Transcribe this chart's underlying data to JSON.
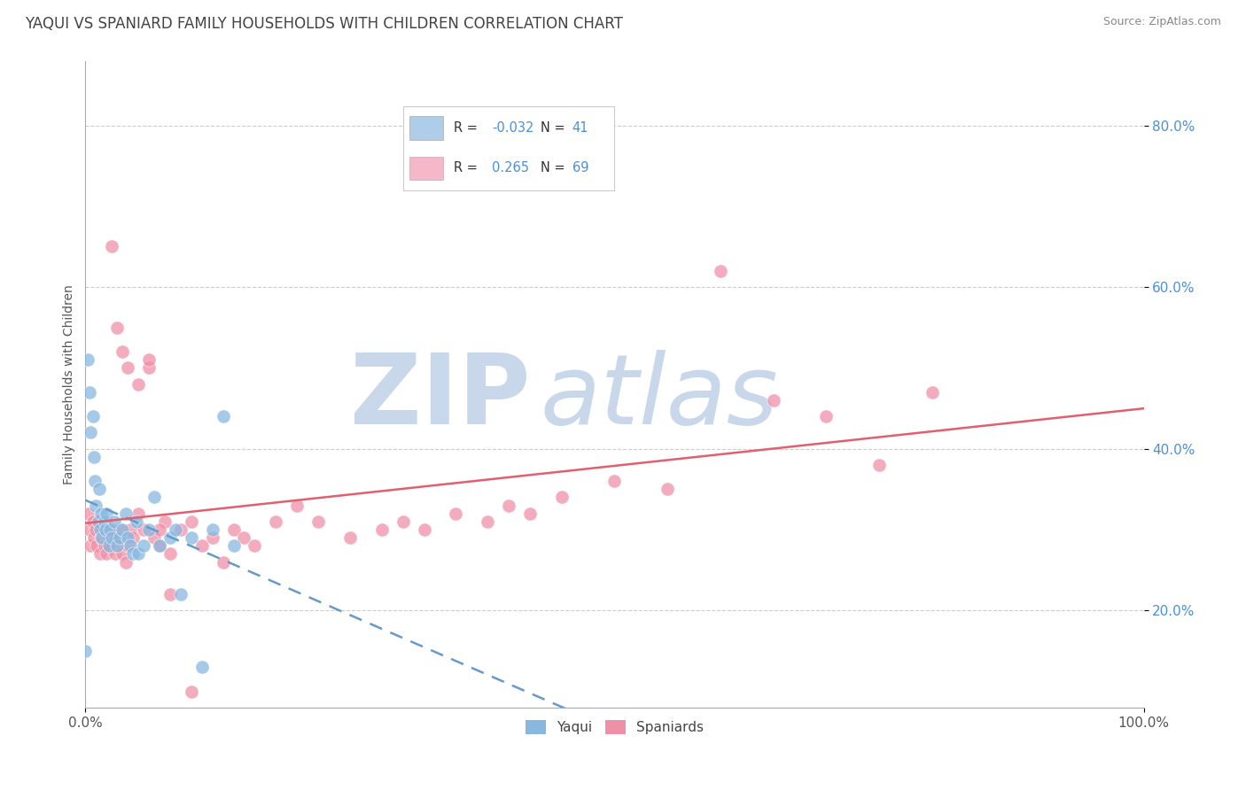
{
  "title": "YAQUI VS SPANIARD FAMILY HOUSEHOLDS WITH CHILDREN CORRELATION CHART",
  "source": "Source: ZipAtlas.com",
  "ylabel": "Family Households with Children",
  "ytick_vals": [
    0.2,
    0.4,
    0.6,
    0.8
  ],
  "ytick_labels": [
    "20.0%",
    "40.0%",
    "60.0%",
    "80.0%"
  ],
  "xmin": 0.0,
  "xmax": 1.0,
  "ymin": 0.08,
  "ymax": 0.88,
  "yaqui_color": "#89b8df",
  "yaqui_trend_color": "#6699cc",
  "spaniard_color": "#f090a8",
  "spaniard_trend_color": "#e06070",
  "legend_yaqui_color": "#aecde8",
  "legend_span_color": "#f4b8c8",
  "background_color": "#ffffff",
  "grid_color": "#cccccc",
  "title_color": "#444444",
  "source_color": "#888888",
  "tick_color": "#4a90d9",
  "axis_label_color": "#555555",
  "watermark_zip_color": "#c8d8ea",
  "watermark_atlas_color": "#c8d8ea",
  "yaqui_x": [
    0.0,
    0.002,
    0.004,
    0.005,
    0.007,
    0.008,
    0.009,
    0.01,
    0.012,
    0.013,
    0.014,
    0.015,
    0.016,
    0.018,
    0.019,
    0.02,
    0.022,
    0.023,
    0.025,
    0.027,
    0.03,
    0.032,
    0.035,
    0.038,
    0.04,
    0.042,
    0.045,
    0.048,
    0.05,
    0.055,
    0.06,
    0.065,
    0.07,
    0.08,
    0.085,
    0.09,
    0.1,
    0.11,
    0.12,
    0.13,
    0.14
  ],
  "yaqui_y": [
    0.15,
    0.51,
    0.47,
    0.42,
    0.44,
    0.39,
    0.36,
    0.33,
    0.31,
    0.35,
    0.3,
    0.32,
    0.29,
    0.31,
    0.3,
    0.32,
    0.28,
    0.3,
    0.29,
    0.31,
    0.28,
    0.29,
    0.3,
    0.32,
    0.29,
    0.28,
    0.27,
    0.31,
    0.27,
    0.28,
    0.3,
    0.34,
    0.28,
    0.29,
    0.3,
    0.22,
    0.29,
    0.13,
    0.3,
    0.44,
    0.28
  ],
  "spaniard_x": [
    0.002,
    0.004,
    0.005,
    0.007,
    0.008,
    0.01,
    0.011,
    0.012,
    0.014,
    0.015,
    0.016,
    0.018,
    0.019,
    0.02,
    0.022,
    0.023,
    0.025,
    0.027,
    0.028,
    0.03,
    0.032,
    0.035,
    0.038,
    0.04,
    0.042,
    0.045,
    0.05,
    0.055,
    0.06,
    0.065,
    0.07,
    0.075,
    0.08,
    0.09,
    0.1,
    0.11,
    0.12,
    0.13,
    0.14,
    0.15,
    0.16,
    0.18,
    0.2,
    0.22,
    0.25,
    0.28,
    0.3,
    0.32,
    0.35,
    0.38,
    0.4,
    0.42,
    0.45,
    0.5,
    0.55,
    0.6,
    0.65,
    0.7,
    0.75,
    0.8,
    0.025,
    0.03,
    0.035,
    0.04,
    0.05,
    0.06,
    0.07,
    0.08,
    0.1
  ],
  "spaniard_y": [
    0.32,
    0.3,
    0.28,
    0.31,
    0.29,
    0.3,
    0.28,
    0.31,
    0.27,
    0.29,
    0.3,
    0.28,
    0.31,
    0.27,
    0.29,
    0.28,
    0.3,
    0.29,
    0.27,
    0.28,
    0.3,
    0.27,
    0.26,
    0.28,
    0.3,
    0.29,
    0.32,
    0.3,
    0.5,
    0.29,
    0.28,
    0.31,
    0.27,
    0.3,
    0.31,
    0.28,
    0.29,
    0.26,
    0.3,
    0.29,
    0.28,
    0.31,
    0.33,
    0.31,
    0.29,
    0.3,
    0.31,
    0.3,
    0.32,
    0.31,
    0.33,
    0.32,
    0.34,
    0.36,
    0.35,
    0.62,
    0.46,
    0.44,
    0.38,
    0.47,
    0.65,
    0.55,
    0.52,
    0.5,
    0.48,
    0.51,
    0.3,
    0.22,
    0.1
  ],
  "title_fontsize": 12,
  "source_fontsize": 9,
  "tick_fontsize": 11,
  "ylabel_fontsize": 10,
  "legend_fontsize": 11
}
